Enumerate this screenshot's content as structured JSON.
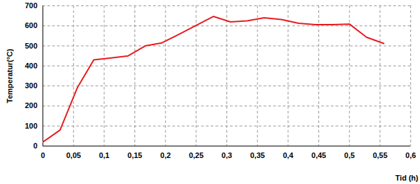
{
  "chart_data": {
    "type": "line",
    "x_label": "Tid (h)",
    "y_label": "Temperatur(°C)",
    "x": [
      0,
      0.028,
      0.056,
      0.083,
      0.111,
      0.139,
      0.167,
      0.194,
      0.222,
      0.25,
      0.278,
      0.306,
      0.333,
      0.361,
      0.389,
      0.417,
      0.444,
      0.472,
      0.5,
      0.528,
      0.556
    ],
    "values": [
      20,
      80,
      290,
      430,
      440,
      450,
      500,
      515,
      558,
      602,
      647,
      620,
      625,
      640,
      632,
      613,
      606,
      606,
      609,
      543,
      512
    ],
    "color": "#e8191c",
    "xlim": [
      0,
      0.6
    ],
    "xticks": [
      0,
      {
        "value": 0.05,
        "label": "0,05"
      },
      {
        "value": 0.1,
        "label": "0,1"
      },
      {
        "value": 0.15,
        "label": "0,15"
      },
      {
        "value": 0.2,
        "label": "0,2"
      },
      {
        "value": 0.25,
        "label": "0,25"
      },
      {
        "value": 0.3,
        "label": "0,3"
      },
      {
        "value": 0.35,
        "label": "0,35"
      },
      {
        "value": 0.4,
        "label": "0,4"
      },
      {
        "value": 0.45,
        "label": "0,45"
      },
      {
        "value": 0.5,
        "label": "0,5"
      },
      {
        "value": 0.55,
        "label": "0,55"
      },
      {
        "value": 0.6,
        "label": "0,6"
      }
    ],
    "ylim": [
      0,
      700
    ],
    "yticks": [
      0,
      100,
      200,
      300,
      400,
      500,
      600,
      700
    ],
    "grid": true
  }
}
